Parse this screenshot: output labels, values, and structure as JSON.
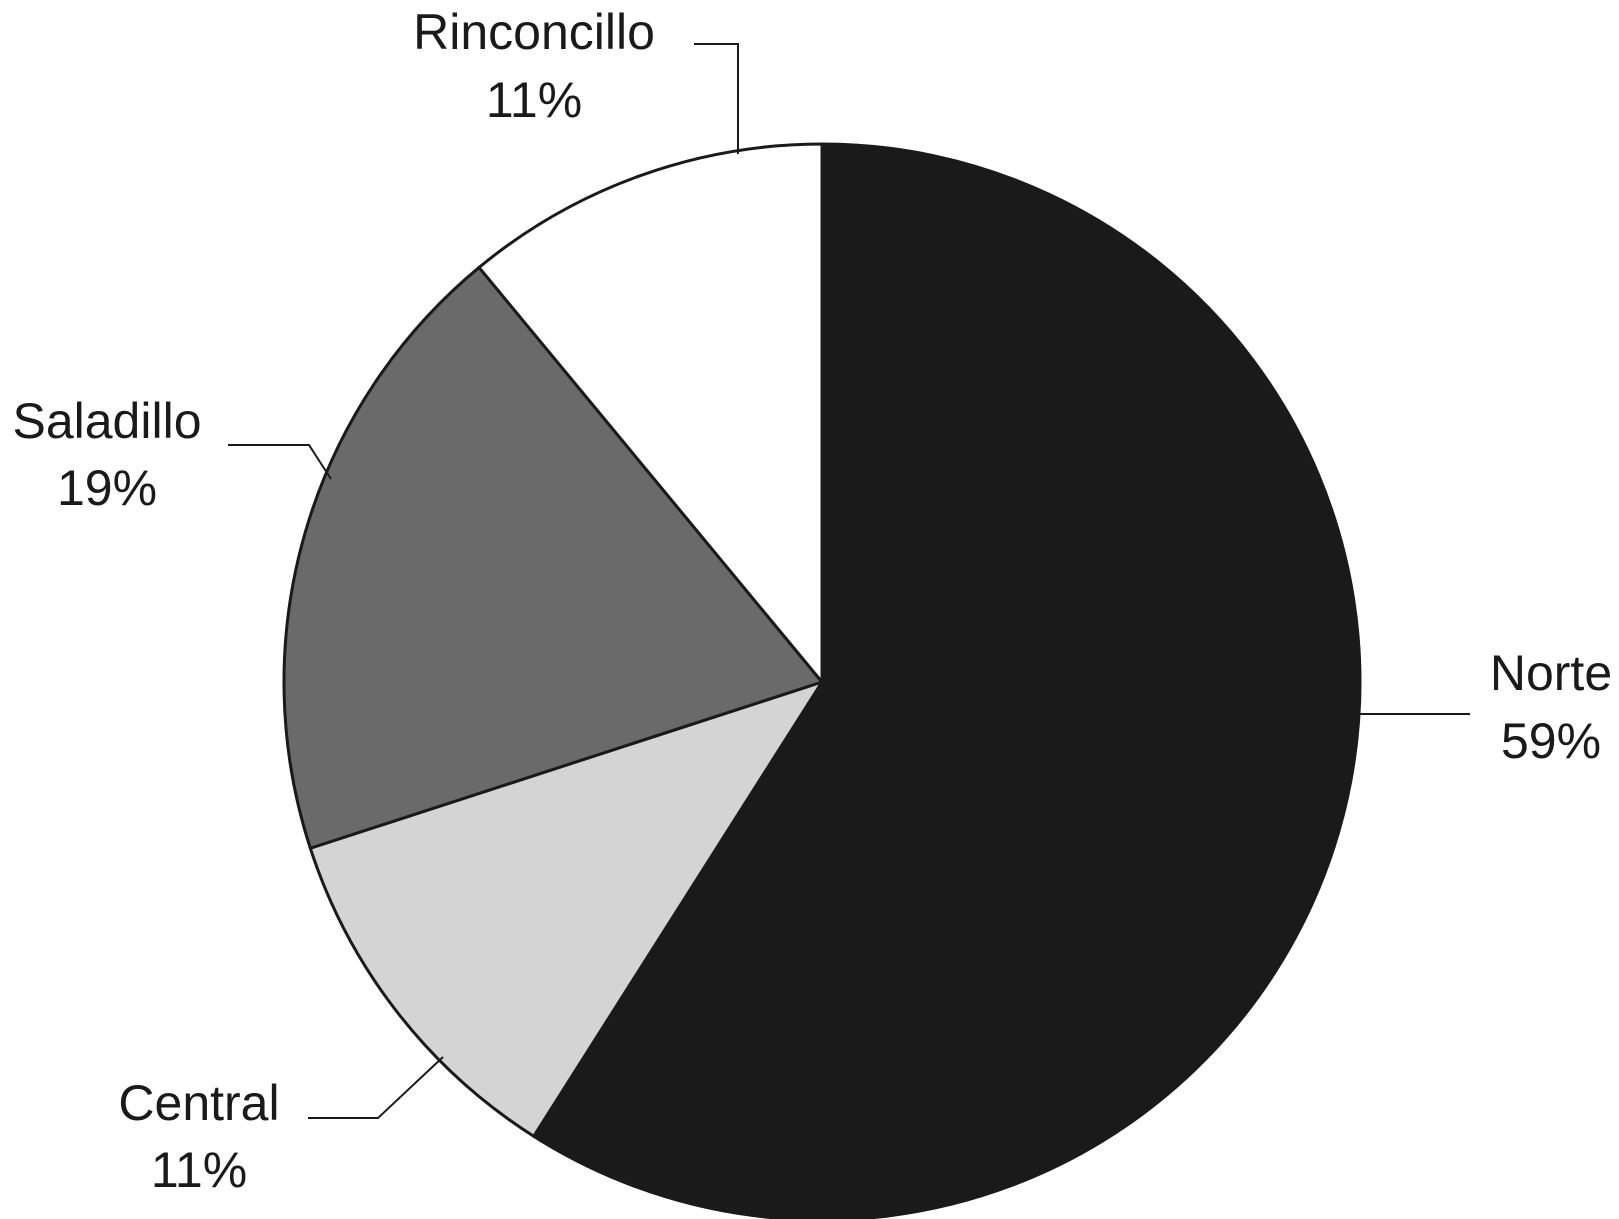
{
  "chart_data": {
    "type": "pie",
    "title": "",
    "slices": [
      {
        "label": "Norte",
        "value": 59,
        "display": "59%",
        "color": "#1a1a1a"
      },
      {
        "label": "Central",
        "value": 11,
        "display": "11%",
        "color": "#d4d4d4"
      },
      {
        "label": "Saladillo",
        "value": 19,
        "display": "19%",
        "color": "#6a6a6a"
      },
      {
        "label": "Rinconcillo",
        "value": 11,
        "display": "11%",
        "color": "#ffffff"
      }
    ],
    "start_angle": "12 o'clock",
    "direction": "clockwise",
    "legend": "none",
    "labels": "outside with leader lines"
  }
}
